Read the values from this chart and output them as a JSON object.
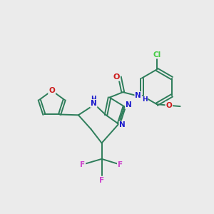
{
  "bg_color": "#ebebeb",
  "bond_color": "#2d7d5a",
  "bond_width": 1.4,
  "n_color": "#1a1acc",
  "o_color": "#cc1a1a",
  "f_color": "#cc44cc",
  "cl_color": "#44cc44",
  "figsize": [
    3.0,
    3.0
  ],
  "dpi": 100,
  "xlim": [
    0,
    10
  ],
  "ylim": [
    0,
    10
  ]
}
